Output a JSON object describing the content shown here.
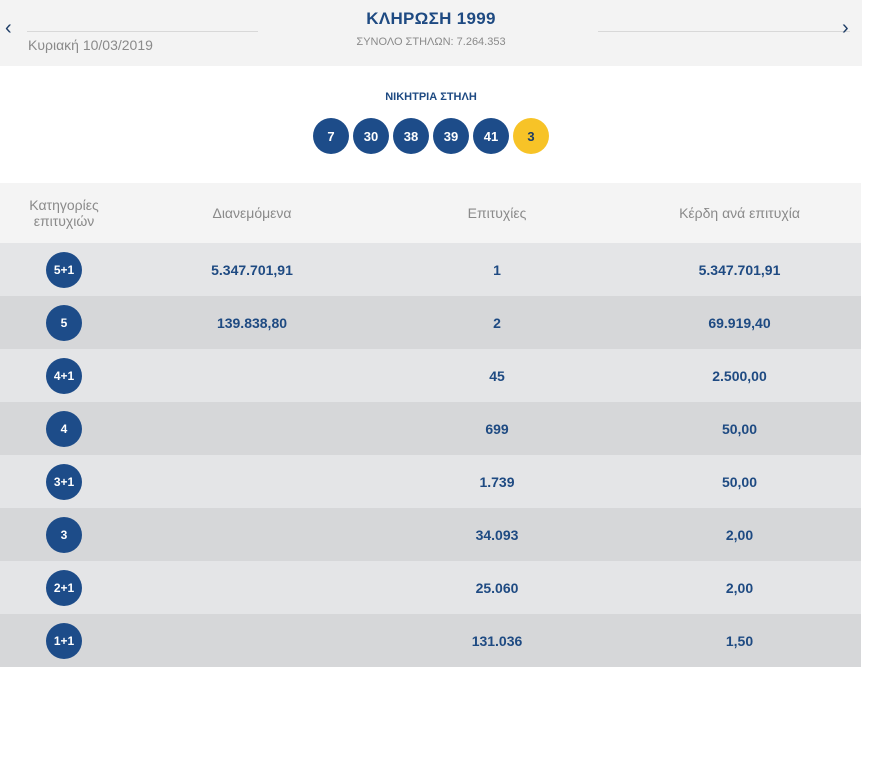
{
  "header": {
    "prev_icon": "chevron-left-icon",
    "next_icon": "chevron-right-icon",
    "prev_glyph": "‹",
    "next_glyph": "›",
    "date": "Κυριακή 10/03/2019",
    "title": "ΚΛΗΡΩΣΗ 1999",
    "subtitle": "ΣΥΝΟΛΟ ΣΤΗΛΩΝ: 7.264.353"
  },
  "winning": {
    "label": "ΝΙΚΗΤΡΙΑ ΣΤΗΛΗ",
    "numbers": [
      "7",
      "30",
      "38",
      "39",
      "41"
    ],
    "joker": "3"
  },
  "table": {
    "headers": [
      "Κατηγορίες επιτυχιών",
      "Διανεμόμενα",
      "Επιτυχίες",
      "Κέρδη ανά επιτυχία"
    ],
    "rows": [
      {
        "category": "5+1",
        "distributed": "5.347.701,91",
        "winners": "1",
        "prize": "5.347.701,91"
      },
      {
        "category": "5",
        "distributed": "139.838,80",
        "winners": "2",
        "prize": "69.919,40"
      },
      {
        "category": "4+1",
        "distributed": "",
        "winners": "45",
        "prize": "2.500,00"
      },
      {
        "category": "4",
        "distributed": "",
        "winners": "699",
        "prize": "50,00"
      },
      {
        "category": "3+1",
        "distributed": "",
        "winners": "1.739",
        "prize": "50,00"
      },
      {
        "category": "3",
        "distributed": "",
        "winners": "34.093",
        "prize": "2,00"
      },
      {
        "category": "2+1",
        "distributed": "",
        "winners": "25.060",
        "prize": "2,00"
      },
      {
        "category": "1+1",
        "distributed": "",
        "winners": "131.036",
        "prize": "1,50"
      }
    ]
  },
  "colors": {
    "primary": "#1d4c89",
    "joker": "#f7c327",
    "row_light": "#e4e5e7",
    "row_dark": "#d6d7d9"
  }
}
